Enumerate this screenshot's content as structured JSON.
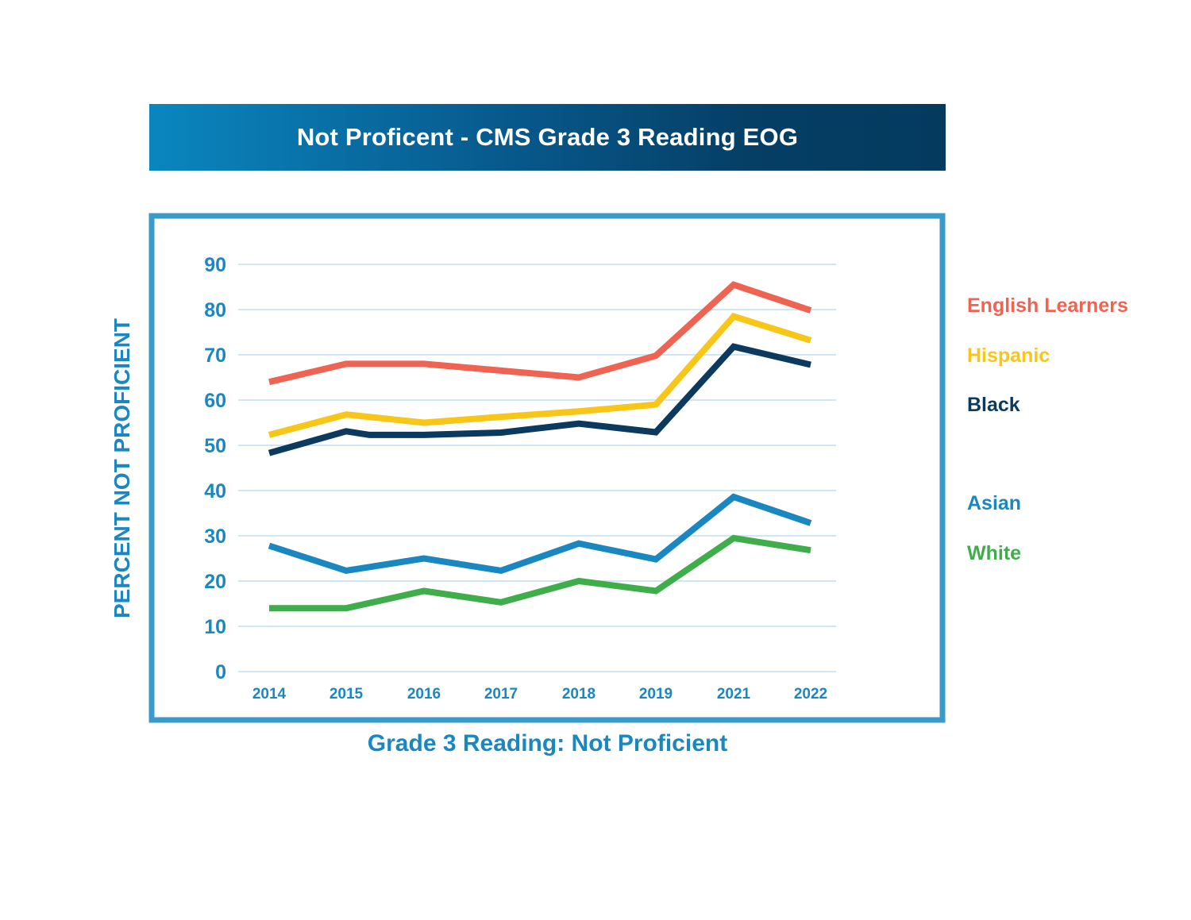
{
  "chart_data": {
    "type": "line",
    "title": "Not Proficent - CMS Grade 3 Reading EOG",
    "xlabel": "Grade 3 Reading: Not Proficient",
    "ylabel": "PERCENT NOT PROFICIENT",
    "categories": [
      "2014",
      "2015",
      "2016",
      "2017",
      "2018",
      "2019",
      "2021",
      "2022"
    ],
    "yticks": [
      "0",
      "10",
      "20",
      "30",
      "40",
      "50",
      "60",
      "70",
      "80",
      "90"
    ],
    "ylim": [
      0,
      90
    ],
    "grid": true,
    "legend_position": "right",
    "series": [
      {
        "name": "English Learners",
        "color": "#ee6352",
        "x": [
          "2014",
          "2015",
          "2016",
          "2017",
          "2018",
          "2019",
          "2021",
          "2022"
        ],
        "values": [
          64,
          68,
          68,
          66.5,
          65,
          69.8,
          85.5,
          79.8
        ]
      },
      {
        "name": "Hispanic",
        "color": "#f8c619",
        "x": [
          "2014",
          "2015",
          "2016",
          "2017",
          "2018",
          "2019",
          "2021",
          "2022"
        ],
        "values": [
          52.3,
          56.8,
          55,
          56.3,
          57.5,
          59,
          78.5,
          73.2
        ]
      },
      {
        "name": "Black",
        "color": "#0b3a5e",
        "x": [
          "2014",
          "2015",
          "2015.3",
          "2016",
          "2017",
          "2018",
          "2019",
          "2021",
          "2022"
        ],
        "values": [
          48.3,
          53.1,
          52.3,
          52.3,
          52.8,
          54.8,
          52.9,
          71.8,
          67.8
        ]
      },
      {
        "name": "Asian",
        "color": "#1a87c0",
        "x": [
          "2014",
          "2015",
          "2016",
          "2017",
          "2018",
          "2019",
          "2021",
          "2022"
        ],
        "values": [
          27.8,
          22.3,
          25,
          22.3,
          28.3,
          24.8,
          38.6,
          32.8
        ]
      },
      {
        "name": "White",
        "color": "#3fad49",
        "x": [
          "2014",
          "2015",
          "2016",
          "2017",
          "2018",
          "2019",
          "2021",
          "2022"
        ],
        "values": [
          14,
          14,
          17.8,
          15.3,
          20,
          17.8,
          29.5,
          26.8
        ]
      }
    ]
  }
}
